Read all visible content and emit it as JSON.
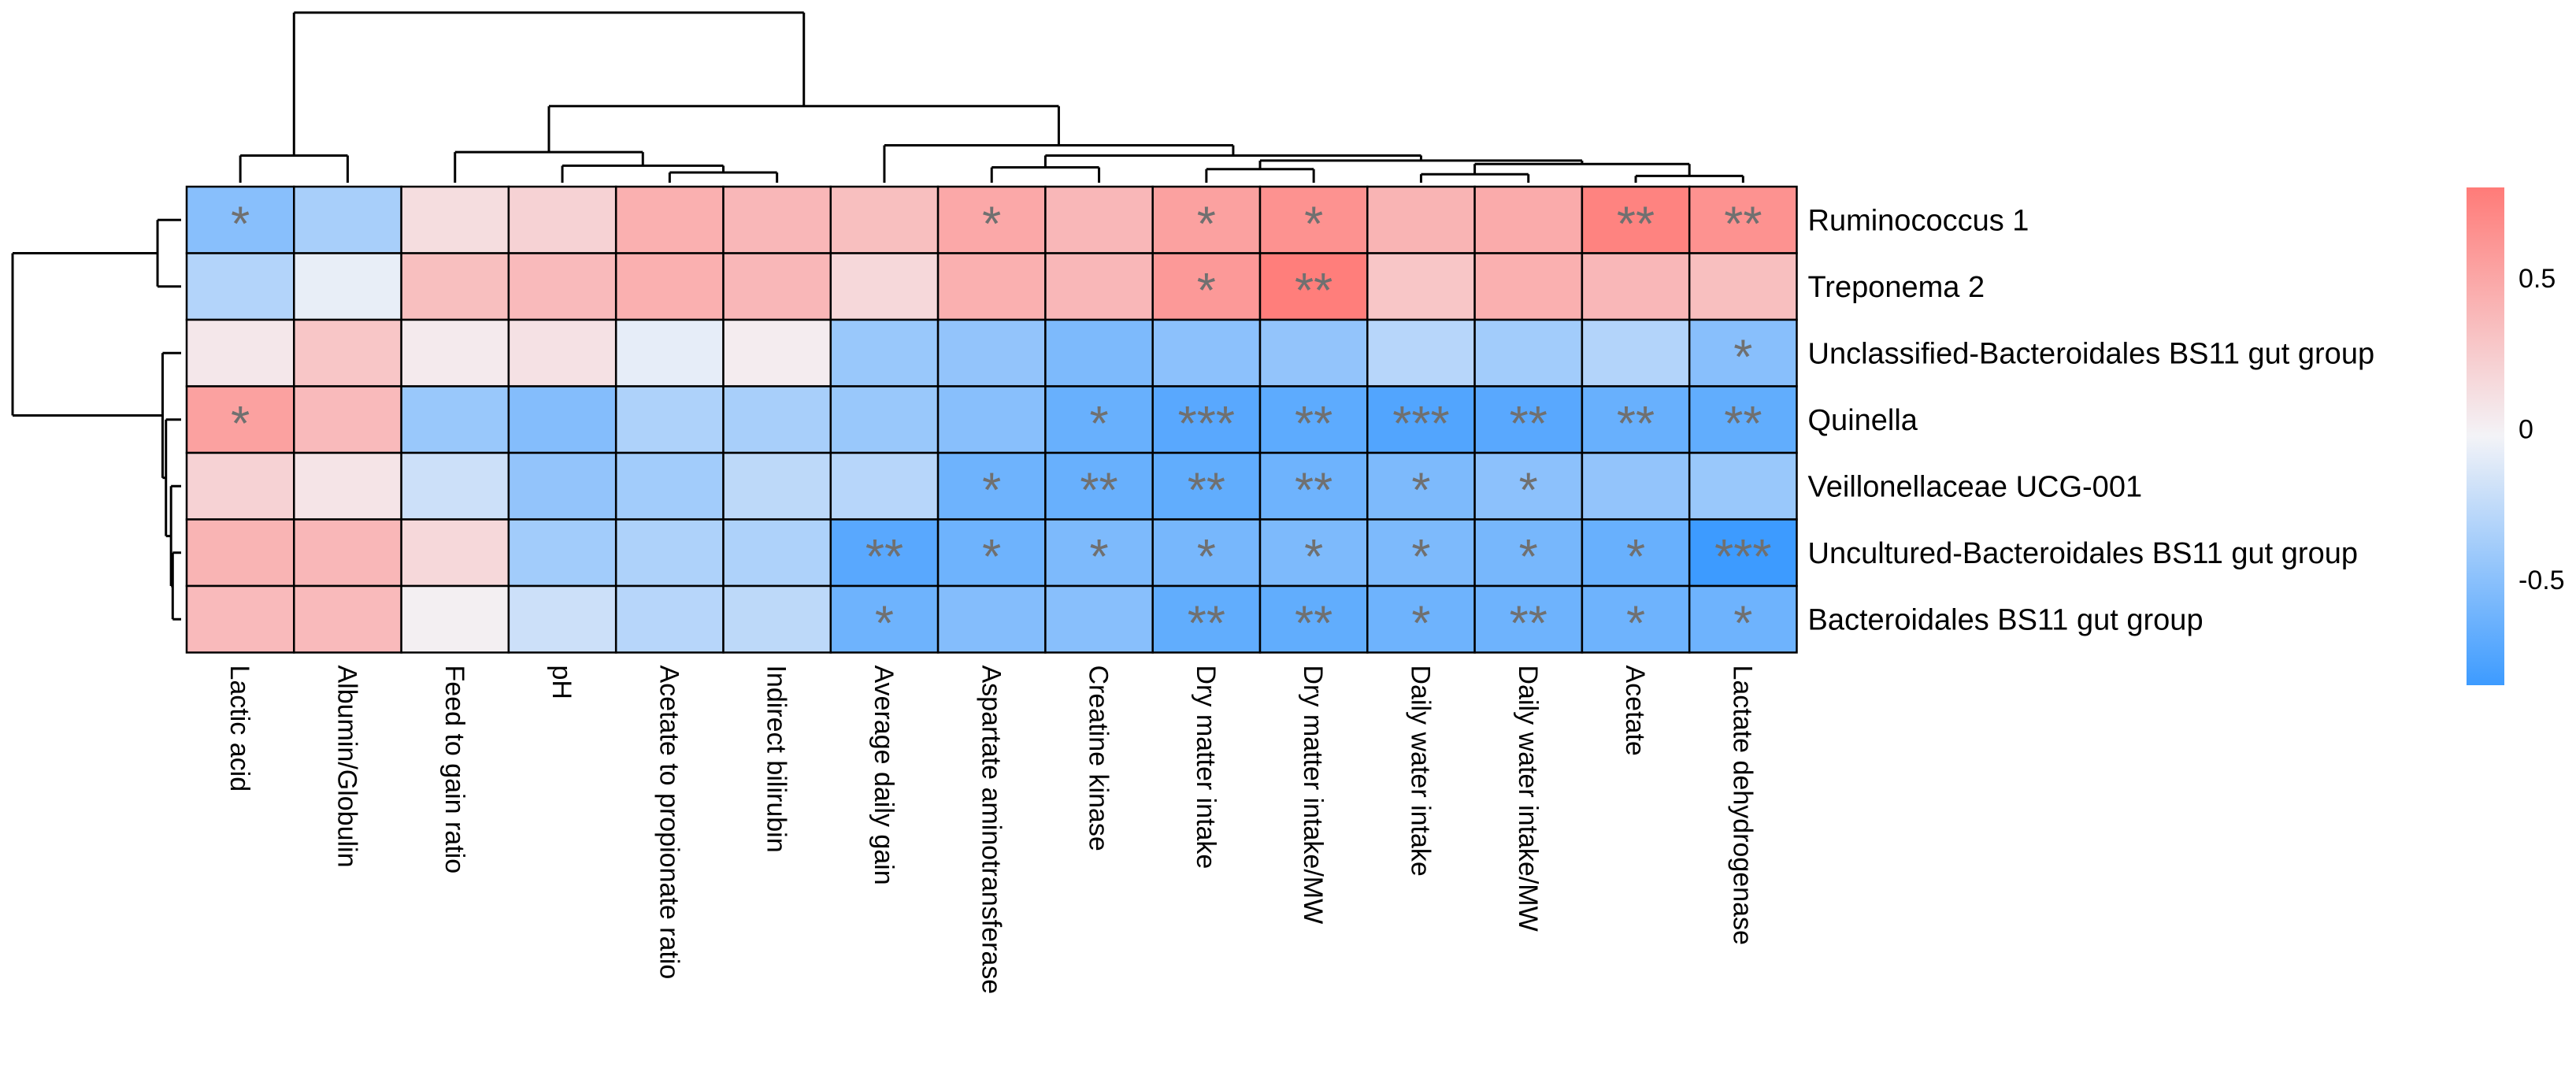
{
  "chart_data": {
    "type": "heatmap",
    "columns": [
      "Lactic acid",
      "Albumin/Globulin",
      "Feed to gain ratio",
      "pH",
      "Acetate to propionate ratio",
      "Indirect bilirubin",
      "Average daily gain",
      "Aspartate aminotransferase",
      "Creatine kinase",
      "Dry matter intake",
      "Dry matter intake/MW",
      "Daily water intake",
      "Daily water intake/MW",
      "Acetate",
      "Lactate dehydrogenase"
    ],
    "rows": [
      "Ruminococcus 1",
      "Treponema 2",
      "Unclassified-Bacteroidales BS11 gut group",
      "Quinella",
      "Veillonellaceae UCG-001",
      "Uncultured-Bacteroidales BS11 gut group",
      "Bacteroidales BS11 gut group"
    ],
    "values": [
      [
        -0.5,
        -0.35,
        0.15,
        0.22,
        0.45,
        0.4,
        0.35,
        0.5,
        0.4,
        0.55,
        0.65,
        0.42,
        0.48,
        0.75,
        0.65
      ],
      [
        -0.3,
        -0.05,
        0.35,
        0.38,
        0.45,
        0.4,
        0.18,
        0.45,
        0.4,
        0.6,
        0.78,
        0.3,
        0.45,
        0.4,
        0.35
      ],
      [
        0.08,
        0.3,
        0.06,
        0.12,
        -0.06,
        0.05,
        -0.42,
        -0.45,
        -0.55,
        -0.48,
        -0.45,
        -0.28,
        -0.38,
        -0.3,
        -0.5
      ],
      [
        0.55,
        0.38,
        -0.42,
        -0.52,
        -0.32,
        -0.35,
        -0.42,
        -0.5,
        -0.65,
        -0.72,
        -0.7,
        -0.75,
        -0.72,
        -0.65,
        -0.68
      ],
      [
        0.22,
        0.1,
        -0.18,
        -0.45,
        -0.38,
        -0.25,
        -0.28,
        -0.62,
        -0.65,
        -0.68,
        -0.62,
        -0.55,
        -0.48,
        -0.45,
        -0.42
      ],
      [
        0.42,
        0.4,
        0.18,
        -0.38,
        -0.32,
        -0.32,
        -0.72,
        -0.62,
        -0.55,
        -0.58,
        -0.55,
        -0.55,
        -0.58,
        -0.65,
        -0.85
      ],
      [
        0.38,
        0.38,
        0.03,
        -0.18,
        -0.28,
        -0.25,
        -0.62,
        -0.52,
        -0.5,
        -0.68,
        -0.68,
        -0.62,
        -0.62,
        -0.62,
        -0.62
      ]
    ],
    "significance": [
      [
        "*",
        "",
        "",
        "",
        "",
        "",
        "",
        "*",
        "",
        "*",
        "*",
        "",
        "",
        "**",
        "**"
      ],
      [
        "",
        "",
        "",
        "",
        "",
        "",
        "",
        "",
        "",
        "*",
        "**",
        "",
        "",
        "",
        ""
      ],
      [
        "",
        "",
        "",
        "",
        "",
        "",
        "",
        "",
        "",
        "",
        "",
        "",
        "",
        "",
        "*"
      ],
      [
        "*",
        "",
        "",
        "",
        "",
        "",
        "",
        "",
        "*",
        "***",
        "**",
        "***",
        "**",
        "**",
        "**"
      ],
      [
        "",
        "",
        "",
        "",
        "",
        "",
        "",
        "*",
        "**",
        "**",
        "**",
        "*",
        "*",
        "",
        ""
      ],
      [
        "",
        "",
        "",
        "",
        "",
        "",
        "**",
        "*",
        "*",
        "*",
        "*",
        "*",
        "*",
        "*",
        "***"
      ],
      [
        "",
        "",
        "",
        "",
        "",
        "",
        "*",
        "",
        "",
        "**",
        "**",
        "*",
        "**",
        "*",
        "*"
      ]
    ],
    "color_scale": {
      "min": -0.85,
      "max": 0.8,
      "low_color": "#3d9bff",
      "mid_color": "#f3f3f7",
      "high_color": "#ff7b78",
      "ticks": [
        0.5,
        0,
        -0.5
      ],
      "tick_labels": [
        "0.5",
        "0",
        "-0.5"
      ]
    },
    "column_dendrogram": {
      "leaves": 15,
      "merges": [
        [
          -14,
          -15,
          0.04
        ],
        [
          -12,
          -13,
          0.05
        ],
        [
          -5,
          -6,
          0.06
        ],
        [
          -10,
          -11,
          0.08
        ],
        [
          -8,
          -9,
          0.09
        ],
        [
          -4,
          3,
          0.1
        ],
        [
          -1,
          -2,
          0.16
        ],
        [
          1,
          2,
          0.11
        ],
        [
          4,
          8,
          0.13
        ],
        [
          5,
          9,
          0.16
        ],
        [
          -3,
          6,
          0.18
        ],
        [
          -7,
          10,
          0.22
        ],
        [
          11,
          12,
          0.45
        ],
        [
          7,
          13,
          1.0
        ]
      ]
    },
    "row_dendrogram": {
      "leaves": 7,
      "merges": [
        [
          -6,
          -7,
          0.05
        ],
        [
          -5,
          1,
          0.06
        ],
        [
          -4,
          2,
          0.09
        ],
        [
          -3,
          3,
          0.11
        ],
        [
          -1,
          -2,
          0.14
        ],
        [
          4,
          5,
          1.0
        ]
      ]
    }
  }
}
